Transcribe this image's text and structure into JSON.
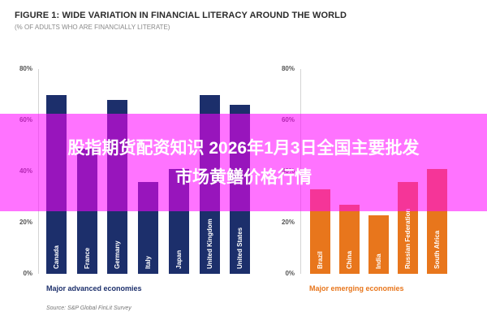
{
  "figure": {
    "title": "FIGURE 1: WIDE VARIATION IN FINANCIAL LITERACY AROUND THE WORLD",
    "subtitle": "(% OF ADULTS WHO ARE FINANCIALLY LITERATE)",
    "source": "Source: S&P Global FinLit Survey"
  },
  "overlay": {
    "line1": "股指期货配资知识 2026年1月3日全国主要批发",
    "line2": "市场黄鳝价格行情",
    "color": "#ff00ff"
  },
  "yticks": [
    "80%",
    "60%",
    "40%",
    "20%",
    "0%"
  ],
  "chart_data": [
    {
      "type": "bar",
      "title": "Major advanced economies",
      "categories": [
        "Canada",
        "France",
        "Germany",
        "Italy",
        "Japan",
        "United Kingdom",
        "United States"
      ],
      "values": [
        70,
        49,
        68,
        36,
        41,
        70,
        66
      ],
      "ylabel": "% of adults who are financially literate",
      "ylim": [
        0,
        80
      ],
      "yticks": [
        0,
        20,
        40,
        60,
        80
      ],
      "color": "#1c2f6b",
      "grid": false
    },
    {
      "type": "bar",
      "title": "Major emerging economies",
      "categories": [
        "Brazil",
        "China",
        "India",
        "Russian Federation",
        "South Africa"
      ],
      "values": [
        33,
        27,
        23,
        36,
        41
      ],
      "ylabel": "% of adults who are financially literate",
      "ylim": [
        0,
        80
      ],
      "yticks": [
        0,
        20,
        40,
        60,
        80
      ],
      "color": "#e8761c",
      "grid": false
    }
  ],
  "groups": {
    "advanced_label": "Major advanced economies",
    "emerging_label": "Major emerging economies",
    "advanced_color": "#1c2f6b",
    "emerging_color": "#e8761c"
  }
}
